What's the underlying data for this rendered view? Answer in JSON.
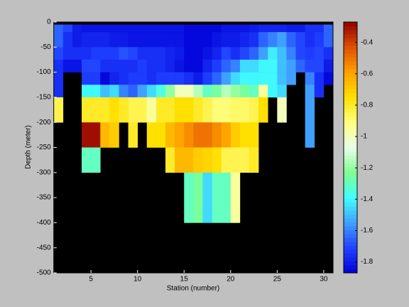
{
  "chart_data": {
    "type": "heatmap",
    "xlabel": "Station (number)",
    "ylabel": "Depth (meter)",
    "x": [
      1,
      2,
      3,
      4,
      5,
      6,
      7,
      8,
      9,
      10,
      11,
      12,
      13,
      14,
      15,
      16,
      17,
      18,
      19,
      20,
      21,
      22,
      23,
      24,
      25,
      26,
      27,
      28,
      29,
      30,
      31
    ],
    "y": [
      -5,
      -20,
      -50,
      -75,
      -100,
      -125,
      -150,
      -200,
      -250,
      -300,
      -400
    ],
    "xlim": [
      1,
      31
    ],
    "xticks": [
      5,
      10,
      15,
      20,
      25,
      30
    ],
    "ylim": [
      -500,
      0
    ],
    "yticks": [
      -500,
      -450,
      -400,
      -350,
      -300,
      -250,
      -200,
      -150,
      -100,
      -50,
      0
    ],
    "clim": [
      -1.87,
      -0.27
    ],
    "cticks": [
      -1.8,
      -1.6,
      -1.4,
      -1.2,
      -1,
      -0.8,
      -0.6,
      -0.4
    ],
    "colormap": [
      "#0000d8",
      "#2040ff",
      "#40a0ff",
      "#40ffff",
      "#80ff90",
      "#e8ffe8",
      "#ffff80",
      "#ffe000",
      "#ffa000",
      "#e05000",
      "#900000"
    ],
    "background": "#000000",
    "values": [
      [
        -1.65,
        -1.7,
        -1.8,
        -1.82,
        -1.82,
        -1.82,
        -1.82,
        -1.82,
        -1.82,
        -1.82,
        -1.82,
        -1.82,
        -1.82,
        -1.82,
        -1.85,
        -1.85,
        -1.85,
        -1.85,
        -1.82,
        -1.82,
        -1.82,
        -1.8,
        -1.78,
        -1.78,
        -1.78,
        -1.8,
        -1.8,
        -1.75,
        -1.75,
        -1.65
      ],
      [
        -1.65,
        -1.75,
        -1.8,
        -1.78,
        -1.78,
        -1.78,
        -1.8,
        -1.8,
        -1.82,
        -1.82,
        -1.82,
        -1.82,
        -1.82,
        -1.82,
        -1.85,
        -1.85,
        -1.85,
        -1.82,
        -1.8,
        -1.8,
        -1.78,
        -1.75,
        -1.65,
        -1.6,
        -1.55,
        -1.65,
        -1.7,
        -1.75,
        -1.72,
        -1.65
      ],
      [
        -1.7,
        -1.75,
        -1.75,
        -1.75,
        -1.72,
        -1.72,
        -1.72,
        -1.68,
        -1.7,
        -1.75,
        -1.75,
        -1.75,
        -1.78,
        -1.8,
        -1.85,
        -1.85,
        -1.82,
        -1.78,
        -1.7,
        -1.75,
        -1.7,
        -1.65,
        -1.55,
        -1.42,
        -1.5,
        -1.6,
        -1.7,
        -1.72,
        -1.7,
        -1.75
      ],
      [
        -1.75,
        -1.82,
        -1.82,
        -1.7,
        -1.7,
        -1.75,
        -1.75,
        -1.75,
        -1.75,
        -1.72,
        -1.75,
        -1.75,
        -1.78,
        -1.82,
        -1.85,
        -1.85,
        -1.78,
        -1.72,
        -1.65,
        -1.6,
        -1.45,
        -1.45,
        -1.4,
        -1.4,
        -1.5,
        -1.55,
        -1.65,
        -1.7,
        -1.7,
        -1.8
      ],
      [
        -1.75,
        null,
        null,
        -1.72,
        -1.72,
        -1.85,
        -1.78,
        -1.75,
        -1.72,
        -1.72,
        -1.75,
        -1.72,
        -1.72,
        -1.72,
        -1.75,
        -1.8,
        -1.72,
        -1.65,
        -1.55,
        -1.45,
        -1.4,
        -1.4,
        -1.4,
        -1.4,
        -1.5,
        -1.55,
        null,
        -1.6,
        -1.75,
        -1.85
      ],
      [
        -1.75,
        null,
        null,
        -1.4,
        -1.4,
        -1.5,
        -1.45,
        -1.6,
        -1.65,
        -1.55,
        -1.45,
        -1.35,
        -1.2,
        -1.0,
        -1.0,
        -1.15,
        -1.3,
        -1.25,
        -1.15,
        -1.2,
        -1.25,
        -1.3,
        -0.95,
        -1.4,
        -1.45,
        null,
        null,
        -1.55,
        -1.75,
        null
      ],
      [
        -0.85,
        null,
        null,
        -0.8,
        -0.8,
        -0.8,
        -0.75,
        -0.8,
        -0.85,
        -0.85,
        -0.95,
        -0.8,
        -0.8,
        -0.75,
        -0.75,
        -0.8,
        -0.85,
        -0.9,
        -0.9,
        -0.88,
        -0.88,
        -0.85,
        -0.75,
        null,
        -1.0,
        null,
        null,
        -1.55,
        null,
        null
      ],
      [
        null,
        null,
        null,
        -0.3,
        -0.3,
        -0.65,
        -0.7,
        null,
        -0.8,
        null,
        -0.75,
        -0.75,
        -0.65,
        -0.6,
        -0.55,
        -0.5,
        -0.5,
        -0.55,
        -0.6,
        -0.7,
        -0.75,
        -0.75,
        null,
        null,
        null,
        null,
        null,
        -1.55,
        null,
        null
      ],
      [
        null,
        null,
        null,
        -1.3,
        -1.3,
        null,
        null,
        null,
        null,
        null,
        null,
        null,
        -0.8,
        -0.65,
        -0.65,
        -0.7,
        -0.72,
        -0.75,
        -0.85,
        -0.85,
        -0.85,
        -0.8,
        null,
        null,
        null,
        null,
        null,
        null,
        null,
        null
      ],
      [
        null,
        null,
        null,
        null,
        null,
        null,
        null,
        null,
        null,
        null,
        null,
        null,
        null,
        null,
        -1.3,
        -1.25,
        -1.45,
        -1.3,
        -1.3,
        -0.95,
        null,
        null,
        null,
        null,
        null,
        null,
        null,
        null,
        null,
        null
      ]
    ]
  }
}
